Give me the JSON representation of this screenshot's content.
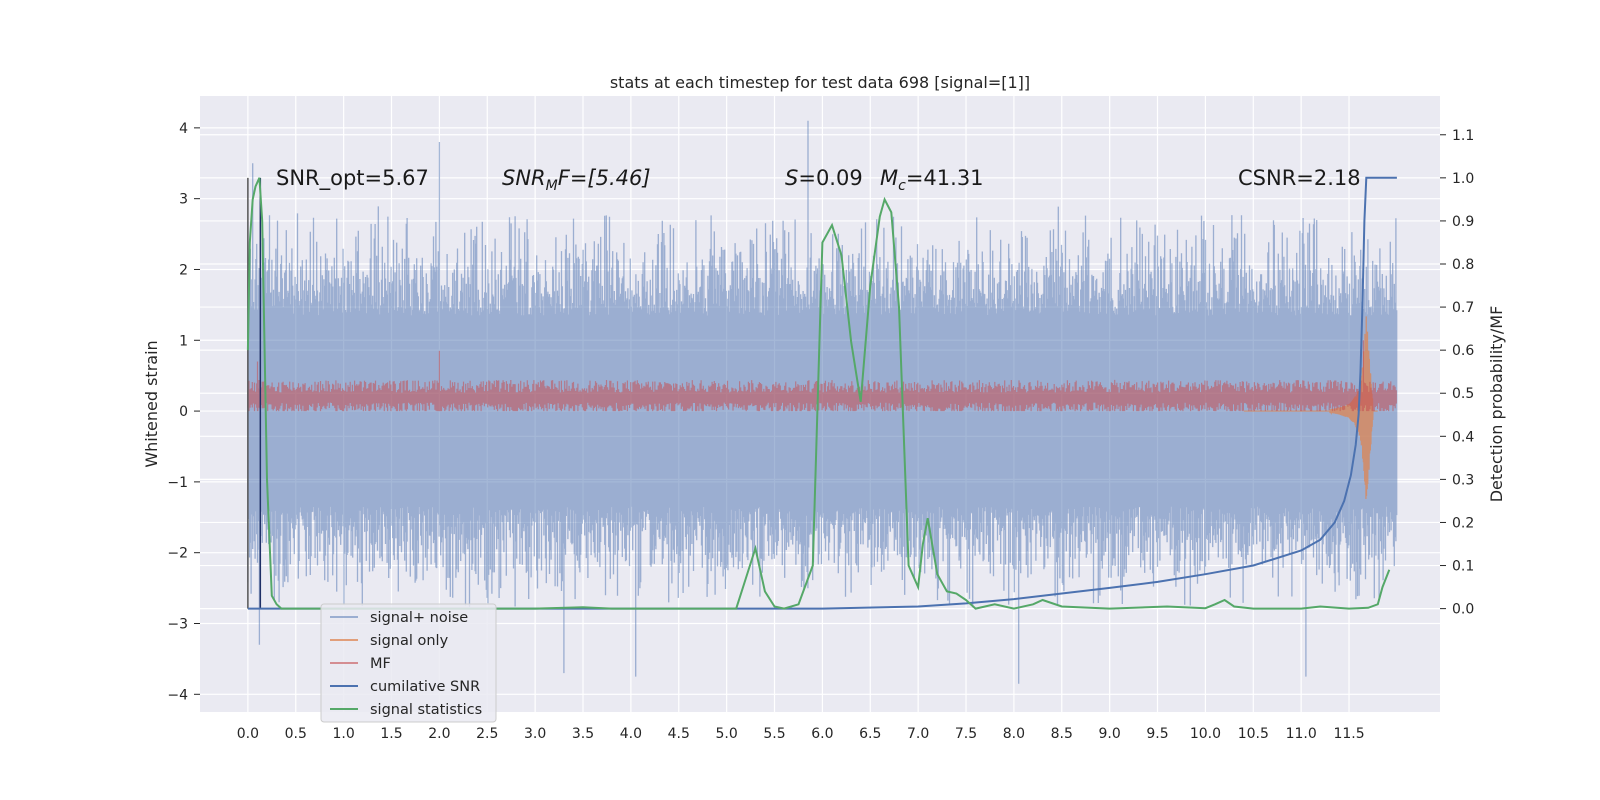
{
  "chart_data": {
    "type": "line",
    "title": "stats at each timestep for test data 698 [signal=[1]]",
    "xlabel": "",
    "ylabel": "Whitened strain",
    "y2label": "Detection probability/MF",
    "xlim": [
      -0.5,
      12.45
    ],
    "ylim": [
      -4.25,
      4.45
    ],
    "y2lim": [
      -0.24,
      1.19
    ],
    "x_ticks": [
      "0.0",
      "0.5",
      "1.0",
      "1.5",
      "2.0",
      "2.5",
      "3.0",
      "3.5",
      "4.0",
      "4.5",
      "5.0",
      "5.5",
      "6.0",
      "6.5",
      "7.0",
      "7.5",
      "8.0",
      "8.5",
      "9.0",
      "9.5",
      "10.0",
      "10.5",
      "11.0",
      "11.5"
    ],
    "y_ticks": [
      "4",
      "3",
      "2",
      "1",
      "0",
      "−1",
      "−2",
      "−3",
      "−4"
    ],
    "y2_ticks": [
      "1.1",
      "1.0",
      "0.9",
      "0.8",
      "0.7",
      "0.6",
      "0.5",
      "0.4",
      "0.3",
      "0.2",
      "0.1",
      "0.0"
    ],
    "grid": true,
    "legend_position": "lower-left",
    "annotations": {
      "snr_opt": "SNR_opt=5.67",
      "snr_mf_base": "SNR",
      "snr_mf_sub": "M",
      "snr_mf_rest": "F=[5.46]",
      "s_sym": "S",
      "s_rest": "=0.09",
      "mc_base": "M",
      "mc_sub": "c",
      "mc_rest": "=41.31",
      "csnr": "CSNR=2.18"
    },
    "noise": {
      "duration": 12.0,
      "envelope": 1.35,
      "typical_peak": 2.6,
      "max": 4.1,
      "min": -3.75
    },
    "signal_only": {
      "x": [
        11.3,
        11.4,
        11.5,
        11.55,
        11.6,
        11.63,
        11.65,
        11.68,
        11.7,
        11.75
      ],
      "amplitude": [
        0.02,
        0.05,
        0.1,
        0.18,
        0.3,
        0.5,
        0.8,
        1.35,
        1.0,
        0.1
      ]
    },
    "mf": {
      "baseline": 0.2,
      "spread": 0.2,
      "peaks": [
        {
          "x": 2.0,
          "y": 0.85
        },
        {
          "x": 0.1,
          "y": 0.7
        },
        {
          "x": 11.65,
          "y": 1.0
        }
      ]
    },
    "series": [
      {
        "name": "signal+ noise",
        "color": "#4c72b0"
      },
      {
        "name": "signal only",
        "color": "#dd8452"
      },
      {
        "name": "MF",
        "color": "#c44e52"
      },
      {
        "name": "cumilative SNR",
        "color": "#4c72b0",
        "axis": "y2",
        "x": [
          0.0,
          1.0,
          2.0,
          3.0,
          4.0,
          5.0,
          6.0,
          7.0,
          7.5,
          8.0,
          8.5,
          9.0,
          9.5,
          10.0,
          10.5,
          11.0,
          11.2,
          11.35,
          11.45,
          11.52,
          11.57,
          11.6,
          11.62,
          11.64,
          11.66,
          11.68,
          12.0
        ],
        "values": [
          0.0,
          0.0,
          0.0,
          0.0,
          0.0,
          0.0,
          0.0,
          0.005,
          0.012,
          0.022,
          0.035,
          0.048,
          0.062,
          0.08,
          0.1,
          0.135,
          0.16,
          0.2,
          0.25,
          0.31,
          0.38,
          0.45,
          0.55,
          0.7,
          0.9,
          1.0,
          1.0
        ]
      },
      {
        "name": "signal statistics",
        "color": "#55a868",
        "axis": "y2",
        "x": [
          0.0,
          0.02,
          0.05,
          0.08,
          0.12,
          0.15,
          0.2,
          0.25,
          0.3,
          0.35,
          3.0,
          3.5,
          3.8,
          5.1,
          5.2,
          5.3,
          5.4,
          5.5,
          5.6,
          5.75,
          5.9,
          6.0,
          6.1,
          6.2,
          6.3,
          6.4,
          6.5,
          6.6,
          6.65,
          6.72,
          6.8,
          6.9,
          7.0,
          7.05,
          7.1,
          7.2,
          7.3,
          7.4,
          7.5,
          7.6,
          7.8,
          8.0,
          8.2,
          8.3,
          8.5,
          9.0,
          9.6,
          10.0,
          10.1,
          10.2,
          10.3,
          10.5,
          11.0,
          11.2,
          11.5,
          11.7,
          11.8,
          11.85,
          11.92
        ],
        "values": [
          0.6,
          0.85,
          0.95,
          0.98,
          1.0,
          0.9,
          0.3,
          0.03,
          0.01,
          0.0,
          0.0,
          0.003,
          0.0,
          0.0,
          0.07,
          0.14,
          0.04,
          0.005,
          0.0,
          0.01,
          0.1,
          0.85,
          0.89,
          0.82,
          0.62,
          0.48,
          0.75,
          0.91,
          0.95,
          0.92,
          0.7,
          0.1,
          0.05,
          0.15,
          0.21,
          0.08,
          0.04,
          0.035,
          0.02,
          0.0,
          0.01,
          0.0,
          0.01,
          0.02,
          0.005,
          0.0,
          0.005,
          0.001,
          0.01,
          0.02,
          0.005,
          0.0,
          0.0,
          0.005,
          0.0,
          0.002,
          0.01,
          0.05,
          0.09
        ]
      }
    ]
  }
}
